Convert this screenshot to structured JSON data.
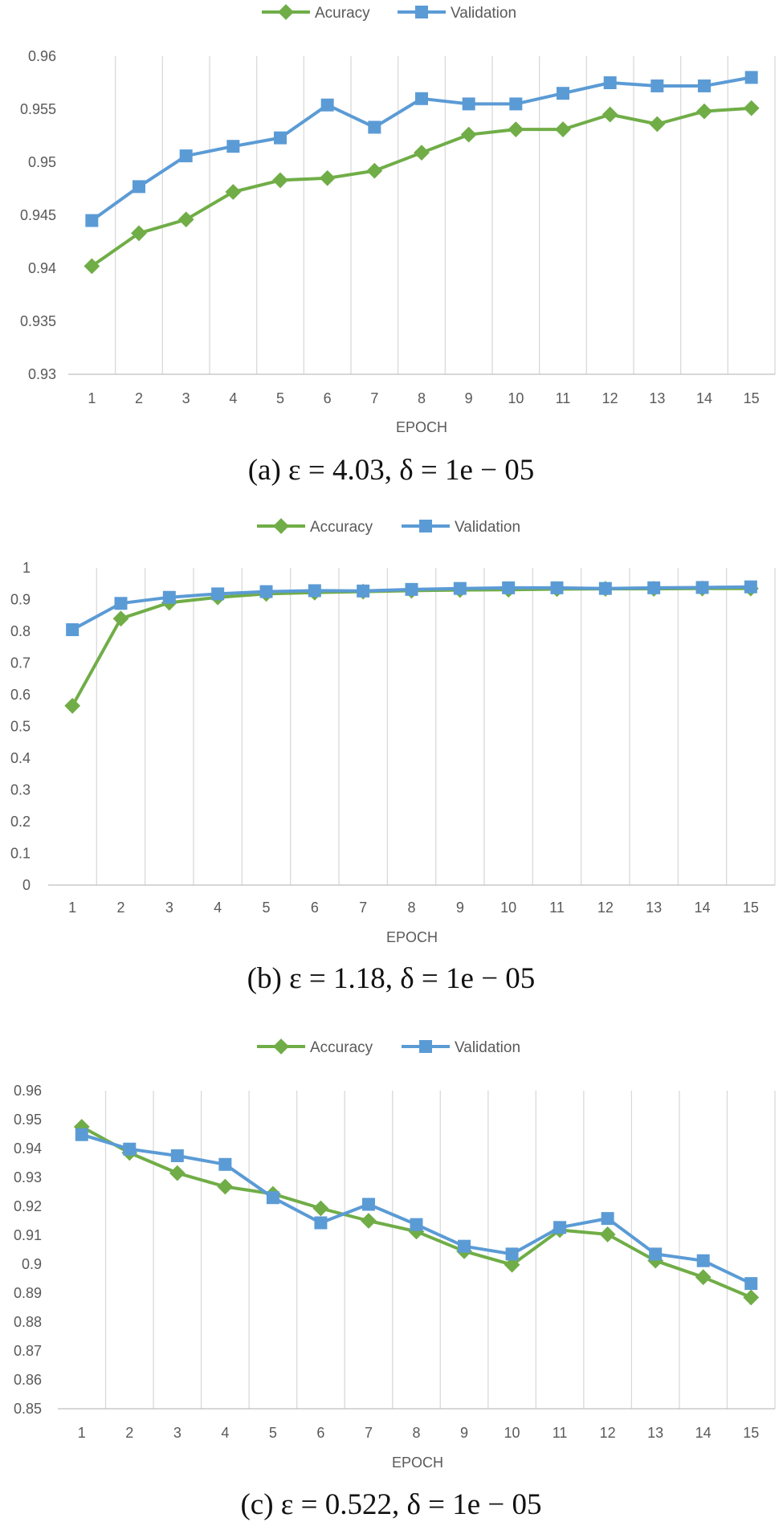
{
  "colors": {
    "accuracy": "#70ad47",
    "validation": "#5b9bd5"
  },
  "chart_data": [
    {
      "type": "line",
      "id": "a",
      "caption": "(a) ε = 4.03, δ = 1e − 05",
      "xlabel": "EPOCH",
      "categories": [
        "1",
        "2",
        "3",
        "4",
        "5",
        "6",
        "7",
        "8",
        "9",
        "10",
        "11",
        "12",
        "13",
        "14",
        "15"
      ],
      "ylim": [
        0.93,
        0.96
      ],
      "yticks": [
        "0.93",
        "0.935",
        "0.94",
        "0.945",
        "0.95",
        "0.955",
        "0.96"
      ],
      "series": [
        {
          "name": "Acuracy",
          "values": [
            0.9402,
            0.9433,
            0.9446,
            0.9472,
            0.9483,
            0.9485,
            0.9492,
            0.9509,
            0.9526,
            0.9531,
            0.9531,
            0.9545,
            0.9536,
            0.9548,
            0.9551
          ]
        },
        {
          "name": "Validation",
          "values": [
            0.9445,
            0.9477,
            0.9506,
            0.9515,
            0.9523,
            0.9554,
            0.9533,
            0.956,
            0.9555,
            0.9555,
            0.9565,
            0.9575,
            0.9572,
            0.9572,
            0.958
          ]
        }
      ]
    },
    {
      "type": "line",
      "id": "b",
      "caption": "(b) ε = 1.18, δ = 1e − 05",
      "xlabel": "EPOCH",
      "categories": [
        "1",
        "2",
        "3",
        "4",
        "5",
        "6",
        "7",
        "8",
        "9",
        "10",
        "11",
        "12",
        "13",
        "14",
        "15"
      ],
      "ylim": [
        0,
        1
      ],
      "yticks": [
        "0",
        "0.1",
        "0.2",
        "0.3",
        "0.4",
        "0.5",
        "0.6",
        "0.7",
        "0.8",
        "0.9",
        "1"
      ],
      "series": [
        {
          "name": "Accuracy",
          "values": [
            0.565,
            0.84,
            0.89,
            0.907,
            0.918,
            0.922,
            0.925,
            0.928,
            0.93,
            0.931,
            0.933,
            0.934,
            0.934,
            0.935,
            0.935
          ]
        },
        {
          "name": "Validation",
          "values": [
            0.805,
            0.888,
            0.907,
            0.918,
            0.925,
            0.928,
            0.927,
            0.932,
            0.935,
            0.937,
            0.937,
            0.935,
            0.937,
            0.938,
            0.94
          ]
        }
      ]
    },
    {
      "type": "line",
      "id": "c",
      "caption": "(c) ε = 0.522, δ = 1e − 05",
      "xlabel": "EPOCH",
      "categories": [
        "1",
        "2",
        "3",
        "4",
        "5",
        "6",
        "7",
        "8",
        "9",
        "10",
        "11",
        "12",
        "13",
        "14",
        "15"
      ],
      "ylim": [
        0.85,
        0.96
      ],
      "yticks": [
        "0.85",
        "0.86",
        "0.87",
        "0.88",
        "0.89",
        "0.9",
        "0.91",
        "0.92",
        "0.93",
        "0.94",
        "0.95",
        "0.96"
      ],
      "series": [
        {
          "name": "Accuracy",
          "values": [
            0.9475,
            0.9385,
            0.9315,
            0.9268,
            0.9243,
            0.9193,
            0.915,
            0.9113,
            0.9045,
            0.8998,
            0.9118,
            0.9103,
            0.9012,
            0.8955,
            0.8885
          ]
        },
        {
          "name": "Validation",
          "values": [
            0.9448,
            0.9398,
            0.9375,
            0.9345,
            0.923,
            0.9143,
            0.9207,
            0.9137,
            0.9062,
            0.9035,
            0.9127,
            0.9158,
            0.9035,
            0.9012,
            0.8933
          ]
        }
      ]
    }
  ]
}
